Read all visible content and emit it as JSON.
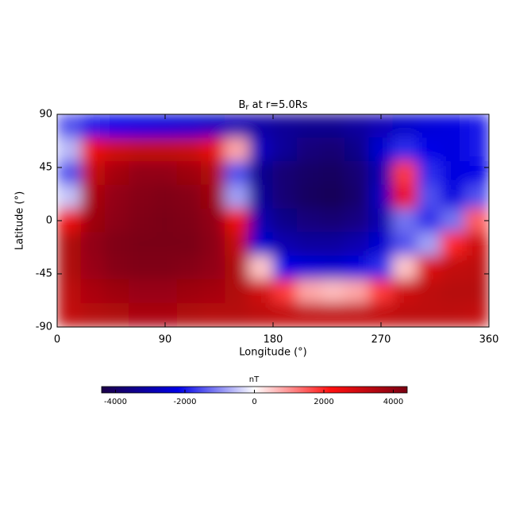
{
  "chart_data": {
    "type": "heatmap",
    "title": "B",
    "title_subscript": "r",
    "title_suffix": " at r=5.0Rs",
    "x_label": "Longitude (°)",
    "y_label": "Latitude (°)",
    "xlim": [
      0,
      360
    ],
    "ylim": [
      -90,
      90
    ],
    "xticks": [
      0,
      90,
      180,
      270,
      360
    ],
    "yticks": [
      -90,
      -45,
      0,
      45,
      90
    ],
    "values": [
      [
        -1500,
        -2000,
        -2200,
        -2300,
        -2400,
        -2500,
        -2700,
        -2900,
        -3100,
        -3300,
        -3400,
        -3400,
        -3200,
        -2900,
        -2600,
        -2400,
        -2300,
        -2000
      ],
      [
        -600,
        2500,
        3000,
        3200,
        3200,
        3100,
        2600,
        800,
        -2800,
        -3300,
        -3700,
        -3800,
        -3500,
        -2500,
        -1800,
        -2200,
        -2300,
        -2000
      ],
      [
        -1500,
        3200,
        3700,
        4000,
        4000,
        3800,
        3500,
        -1500,
        -3400,
        -3800,
        -4000,
        -4100,
        -3800,
        -3000,
        1800,
        -1800,
        -2300,
        -2200
      ],
      [
        -500,
        3600,
        4000,
        4200,
        4300,
        4200,
        3800,
        -800,
        -3300,
        -3800,
        -4100,
        -4200,
        -3900,
        -2800,
        2500,
        -1500,
        -2300,
        -1500
      ],
      [
        2500,
        3800,
        4100,
        4300,
        4400,
        4300,
        4000,
        2500,
        -3000,
        -3500,
        -3700,
        -3800,
        -3600,
        -3000,
        -1200,
        -1800,
        -1200,
        1500
      ],
      [
        3500,
        4000,
        4300,
        4400,
        4500,
        4400,
        4100,
        3200,
        -2500,
        -3000,
        -3200,
        -3200,
        -3000,
        -2500,
        -1500,
        -800,
        2000,
        3000
      ],
      [
        3500,
        3900,
        4200,
        4300,
        4300,
        4200,
        4000,
        3500,
        500,
        -2200,
        -2400,
        -2500,
        -2300,
        -1800,
        500,
        2800,
        3200,
        3300
      ],
      [
        3300,
        3600,
        3800,
        3900,
        3900,
        3800,
        3700,
        3500,
        3000,
        1800,
        800,
        600,
        800,
        1800,
        3000,
        3300,
        3400,
        3400
      ],
      [
        3200,
        3400,
        3500,
        3600,
        3600,
        3500,
        3400,
        3400,
        3300,
        3200,
        3200,
        3200,
        3200,
        3200,
        3300,
        3300,
        3300,
        3200
      ]
    ],
    "colormap": [
      "#1c0048",
      "#0000e6",
      "#ffffff",
      "#ff1010",
      "#7a0012"
    ],
    "colorbar": {
      "label": "nT",
      "zlim": [
        -4400,
        4400
      ],
      "ticks": [
        -4000,
        -2000,
        0,
        2000,
        4000
      ]
    }
  }
}
